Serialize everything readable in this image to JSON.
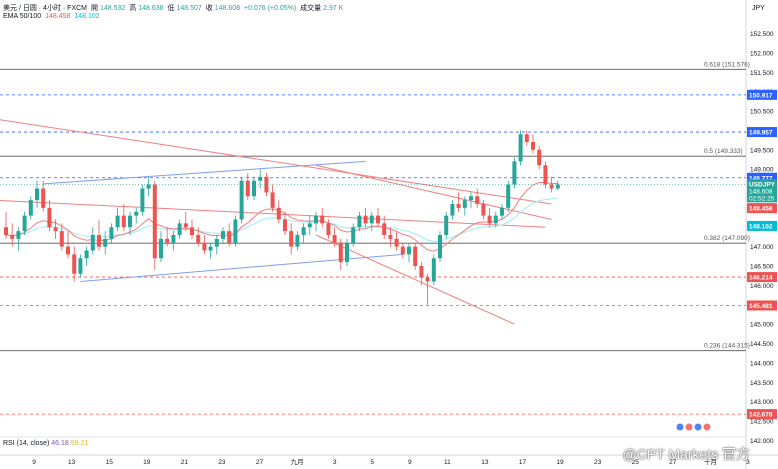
{
  "header": {
    "symbol": "美元 / 日圆 · 4小时 · FXCM",
    "open_label": "開",
    "open": "148.532",
    "high_label": "高",
    "high": "148.638",
    "low_label": "低",
    "low": "148.507",
    "close_label": "收",
    "close": "148.608",
    "change": "+0.076 (+0.05%)",
    "volume_label": "成交量",
    "volume": "2.97 K",
    "ema_label": "EMA 50/100",
    "ema50": "148.458",
    "ema100": "148.102"
  },
  "rsi": {
    "label": "RSI (14, close)",
    "v1": "46.18",
    "v2": "59.21"
  },
  "currency": "JPY",
  "watermark": "@CPT Markets 官方",
  "colors": {
    "up": "#26a69a",
    "down": "#ef5350",
    "ema50": "#f17f7f",
    "ema100": "#a9f0f8",
    "channel_blue": "#7e9ef0",
    "trend_red": "#f08080"
  },
  "chart_data": {
    "type": "candlestick",
    "ylim": [
      141.7,
      152.9
    ],
    "y_ticks": [
      142.0,
      142.5,
      143.0,
      143.5,
      144.0,
      144.5,
      145.0,
      145.5,
      146.0,
      146.5,
      147.0,
      147.5,
      148.0,
      148.5,
      149.0,
      149.5,
      150.0,
      150.5,
      151.0,
      151.5,
      152.0,
      152.5
    ],
    "x_ticks": [
      {
        "label": "9",
        "i": 0
      },
      {
        "label": "13",
        "i": 6
      },
      {
        "label": "15",
        "i": 12
      },
      {
        "label": "19",
        "i": 18
      },
      {
        "label": "21",
        "i": 24
      },
      {
        "label": "23",
        "i": 30
      },
      {
        "label": "27",
        "i": 36
      },
      {
        "label": "九月",
        "i": 42
      },
      {
        "label": "3",
        "i": 48
      },
      {
        "label": "5",
        "i": 54
      },
      {
        "label": "9",
        "i": 60
      },
      {
        "label": "11",
        "i": 66
      },
      {
        "label": "13",
        "i": 72
      },
      {
        "label": "17",
        "i": 78
      },
      {
        "label": "19",
        "i": 84
      },
      {
        "label": "23",
        "i": 90
      },
      {
        "label": "25",
        "i": 96
      },
      {
        "label": "27",
        "i": 102
      },
      {
        "label": "十月",
        "i": 108
      },
      {
        "label": "3",
        "i": 114
      }
    ],
    "horizontal_lines": [
      {
        "value": 151.576,
        "label": "0.618 (151.576)",
        "style": "solid",
        "color": "#555555"
      },
      {
        "value": 150.917,
        "label": "150.917",
        "style": "dashed",
        "color": "#2962ff",
        "tag": true
      },
      {
        "value": 149.957,
        "label": "149.957",
        "style": "dashed",
        "color": "#2962ff",
        "tag": true
      },
      {
        "value": 149.333,
        "label": "0.5 (149.333)",
        "style": "solid",
        "color": "#555555"
      },
      {
        "value": 148.777,
        "label": "148.777",
        "style": "dashed",
        "color": "#2962ff",
        "tag": true
      },
      {
        "value": 147.09,
        "label": "0.382 (147.090)",
        "style": "solid",
        "color": "#555555"
      },
      {
        "value": 146.214,
        "label": "146.214",
        "style": "dashed",
        "color": "#ef5350",
        "tag": true
      },
      {
        "value": 145.481,
        "label": "145.481",
        "style": "dashed",
        "color": "#ef5350",
        "tag": true
      },
      {
        "value": 144.315,
        "label": "0.236 (144.315)",
        "style": "solid",
        "color": "#555555"
      },
      {
        "value": 142.678,
        "label": "142.678",
        "style": "dashed",
        "color": "#ef5350",
        "tag": true
      }
    ],
    "price_tags": [
      {
        "value": 148.608,
        "label": "USDJPY",
        "sub": "148.608",
        "time": "02:52:25",
        "color": "#26a69a"
      },
      {
        "value": 148.458,
        "label": "148.458",
        "color": "#ef5350"
      },
      {
        "value": 148.102,
        "label": "148.102",
        "color": "#00bcd4"
      }
    ],
    "trendlines": [
      {
        "points": [
          [
            6,
            148.62
          ],
          [
            58,
            149.2
          ]
        ],
        "color": "#7e9ef0"
      },
      {
        "points": [
          [
            12,
            146.1
          ],
          [
            64,
            146.8
          ]
        ],
        "color": "#7e9ef0"
      },
      {
        "points": [
          [
            -2,
            150.3
          ],
          [
            88,
            148.1
          ]
        ],
        "color": "#f08080"
      },
      {
        "points": [
          [
            -2,
            148.2
          ],
          [
            87,
            147.5
          ]
        ],
        "color": "#f08080"
      },
      {
        "points": [
          [
            50,
            149.1
          ],
          [
            88,
            147.7
          ]
        ],
        "color": "#f08080"
      },
      {
        "points": [
          [
            50,
            147.3
          ],
          [
            82,
            145.0
          ]
        ],
        "color": "#f08080"
      }
    ],
    "candles": [
      [
        147.5,
        147.9,
        147.2,
        147.3
      ],
      [
        147.3,
        147.6,
        147.0,
        147.2
      ],
      [
        147.2,
        147.5,
        146.9,
        147.4
      ],
      [
        147.4,
        147.9,
        147.3,
        147.8
      ],
      [
        147.8,
        148.3,
        147.7,
        148.2
      ],
      [
        148.2,
        148.7,
        148.0,
        148.5
      ],
      [
        148.5,
        148.7,
        147.9,
        148.0
      ],
      [
        148.0,
        148.2,
        147.4,
        147.5
      ],
      [
        147.5,
        147.7,
        147.2,
        147.4
      ],
      [
        147.4,
        147.6,
        146.9,
        147.0
      ],
      [
        147.0,
        147.4,
        146.7,
        146.8
      ],
      [
        146.8,
        147.0,
        146.1,
        146.3
      ],
      [
        146.3,
        146.8,
        146.2,
        146.7
      ],
      [
        146.7,
        147.0,
        146.5,
        146.9
      ],
      [
        146.9,
        147.5,
        146.8,
        147.3
      ],
      [
        147.3,
        147.7,
        146.9,
        147.0
      ],
      [
        147.0,
        147.4,
        146.8,
        147.2
      ],
      [
        147.2,
        147.6,
        147.1,
        147.5
      ],
      [
        147.5,
        148.0,
        147.4,
        147.8
      ],
      [
        147.8,
        148.1,
        147.4,
        147.5
      ],
      [
        147.5,
        147.9,
        147.3,
        147.8
      ],
      [
        147.8,
        148.0,
        147.6,
        147.9
      ],
      [
        147.9,
        148.6,
        147.8,
        148.5
      ],
      [
        148.5,
        148.8,
        148.3,
        148.6
      ],
      [
        148.6,
        148.7,
        146.4,
        146.7
      ],
      [
        146.7,
        147.4,
        146.6,
        147.2
      ],
      [
        147.2,
        147.5,
        147.0,
        147.1
      ],
      [
        147.1,
        147.4,
        146.9,
        147.3
      ],
      [
        147.3,
        147.7,
        147.2,
        147.6
      ],
      [
        147.6,
        147.9,
        147.4,
        147.5
      ],
      [
        147.5,
        147.7,
        147.2,
        147.3
      ],
      [
        147.3,
        147.5,
        147.0,
        147.1
      ],
      [
        147.1,
        147.3,
        146.8,
        146.9
      ],
      [
        146.9,
        147.1,
        146.7,
        147.0
      ],
      [
        147.0,
        147.3,
        146.8,
        147.2
      ],
      [
        147.2,
        147.5,
        147.1,
        147.4
      ],
      [
        147.4,
        147.6,
        147.0,
        147.1
      ],
      [
        147.1,
        147.8,
        147.0,
        147.7
      ],
      [
        147.7,
        148.8,
        147.6,
        148.7
      ],
      [
        148.7,
        148.9,
        148.2,
        148.3
      ],
      [
        148.3,
        148.8,
        148.2,
        148.7
      ],
      [
        148.7,
        149.0,
        148.5,
        148.8
      ],
      [
        148.8,
        148.9,
        148.3,
        148.4
      ],
      [
        148.4,
        148.6,
        147.9,
        148.0
      ],
      [
        148.0,
        148.2,
        147.6,
        147.7
      ],
      [
        147.7,
        147.9,
        147.3,
        147.4
      ],
      [
        147.4,
        147.6,
        146.8,
        147.0
      ],
      [
        147.0,
        147.4,
        146.9,
        147.3
      ],
      [
        147.3,
        147.6,
        147.1,
        147.5
      ],
      [
        147.5,
        147.8,
        147.3,
        147.6
      ],
      [
        147.6,
        147.9,
        147.4,
        147.8
      ],
      [
        147.8,
        148.0,
        147.5,
        147.6
      ],
      [
        147.6,
        147.7,
        147.2,
        147.3
      ],
      [
        147.3,
        147.5,
        147.0,
        147.1
      ],
      [
        147.1,
        147.2,
        146.4,
        146.6
      ],
      [
        146.6,
        147.2,
        146.5,
        147.1
      ],
      [
        147.1,
        147.6,
        147.0,
        147.5
      ],
      [
        147.5,
        147.9,
        147.4,
        147.8
      ],
      [
        147.8,
        148.0,
        147.5,
        147.6
      ],
      [
        147.6,
        147.9,
        147.4,
        147.8
      ],
      [
        147.8,
        148.0,
        147.5,
        147.6
      ],
      [
        147.6,
        147.8,
        147.2,
        147.3
      ],
      [
        147.3,
        147.5,
        147.0,
        147.2
      ],
      [
        147.2,
        147.4,
        146.9,
        147.0
      ],
      [
        147.0,
        147.1,
        146.7,
        146.8
      ],
      [
        146.8,
        147.1,
        146.6,
        147.0
      ],
      [
        147.0,
        147.1,
        146.4,
        146.5
      ],
      [
        146.5,
        146.6,
        146.0,
        146.2
      ],
      [
        146.2,
        146.3,
        145.5,
        146.1
      ],
      [
        146.1,
        146.8,
        146.0,
        146.7
      ],
      [
        146.7,
        147.4,
        146.6,
        147.3
      ],
      [
        147.3,
        147.9,
        147.2,
        147.8
      ],
      [
        147.8,
        148.2,
        147.7,
        148.1
      ],
      [
        148.1,
        148.4,
        147.9,
        148.0
      ],
      [
        148.0,
        148.3,
        147.8,
        148.2
      ],
      [
        148.2,
        148.4,
        148.0,
        148.3
      ],
      [
        148.3,
        148.5,
        148.0,
        148.1
      ],
      [
        148.1,
        148.2,
        147.7,
        147.8
      ],
      [
        147.8,
        148.0,
        147.5,
        147.6
      ],
      [
        147.6,
        147.9,
        147.5,
        147.8
      ],
      [
        147.8,
        148.1,
        147.7,
        148.0
      ],
      [
        148.0,
        148.7,
        147.9,
        148.6
      ],
      [
        148.6,
        149.3,
        148.5,
        149.2
      ],
      [
        149.2,
        150.0,
        149.1,
        149.9
      ],
      [
        149.9,
        150.0,
        149.6,
        149.7
      ],
      [
        149.7,
        149.9,
        149.4,
        149.5
      ],
      [
        149.5,
        149.6,
        149.0,
        149.1
      ],
      [
        149.1,
        149.2,
        148.5,
        148.6
      ],
      [
        148.6,
        148.8,
        148.4,
        148.5
      ],
      [
        148.5,
        148.7,
        148.45,
        148.6
      ]
    ]
  }
}
